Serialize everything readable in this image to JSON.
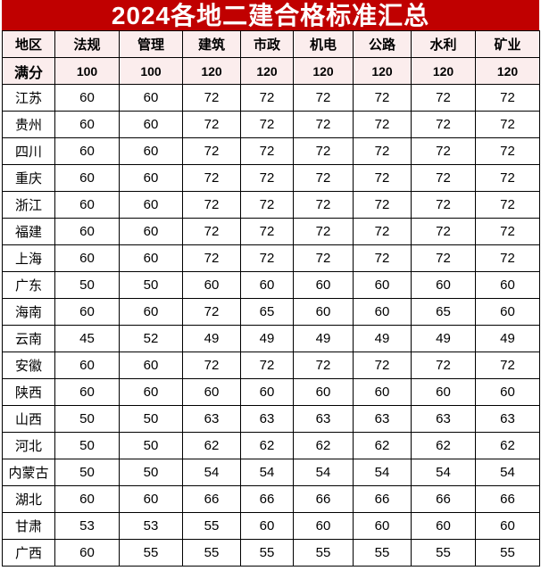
{
  "title": "2024各地二建合格标准汇总",
  "colors": {
    "title_bg": "#c00000",
    "header_bg": "#fbeded"
  },
  "headers": [
    "地区",
    "法规",
    "管理",
    "建筑",
    "市政",
    "机电",
    "公路",
    "水利",
    "矿业"
  ],
  "full_marks": [
    "满分",
    "100",
    "100",
    "120",
    "120",
    "120",
    "120",
    "120",
    "120"
  ],
  "rows": [
    [
      "江苏",
      "60",
      "60",
      "72",
      "72",
      "72",
      "72",
      "72",
      "72"
    ],
    [
      "贵州",
      "60",
      "60",
      "72",
      "72",
      "72",
      "72",
      "72",
      "72"
    ],
    [
      "四川",
      "60",
      "60",
      "72",
      "72",
      "72",
      "72",
      "72",
      "72"
    ],
    [
      "重庆",
      "60",
      "60",
      "72",
      "72",
      "72",
      "72",
      "72",
      "72"
    ],
    [
      "浙江",
      "60",
      "60",
      "72",
      "72",
      "72",
      "72",
      "72",
      "72"
    ],
    [
      "福建",
      "60",
      "60",
      "72",
      "72",
      "72",
      "72",
      "72",
      "72"
    ],
    [
      "上海",
      "60",
      "60",
      "72",
      "72",
      "72",
      "72",
      "72",
      "72"
    ],
    [
      "广东",
      "50",
      "50",
      "60",
      "60",
      "60",
      "60",
      "60",
      "60"
    ],
    [
      "海南",
      "60",
      "60",
      "72",
      "65",
      "60",
      "60",
      "65",
      "60"
    ],
    [
      "云南",
      "45",
      "52",
      "49",
      "49",
      "49",
      "49",
      "49",
      "49"
    ],
    [
      "安徽",
      "60",
      "60",
      "72",
      "72",
      "72",
      "72",
      "72",
      "72"
    ],
    [
      "陕西",
      "60",
      "60",
      "60",
      "60",
      "60",
      "60",
      "60",
      "60"
    ],
    [
      "山西",
      "50",
      "50",
      "63",
      "63",
      "63",
      "63",
      "63",
      "63"
    ],
    [
      "河北",
      "50",
      "50",
      "62",
      "62",
      "62",
      "62",
      "62",
      "62"
    ],
    [
      "内蒙古",
      "50",
      "50",
      "54",
      "54",
      "54",
      "54",
      "54",
      "54"
    ],
    [
      "湖北",
      "60",
      "60",
      "66",
      "66",
      "66",
      "66",
      "66",
      "66"
    ],
    [
      "甘肃",
      "53",
      "53",
      "55",
      "60",
      "60",
      "60",
      "60",
      "60"
    ],
    [
      "广西",
      "60",
      "55",
      "55",
      "55",
      "55",
      "55",
      "55",
      "55"
    ]
  ]
}
